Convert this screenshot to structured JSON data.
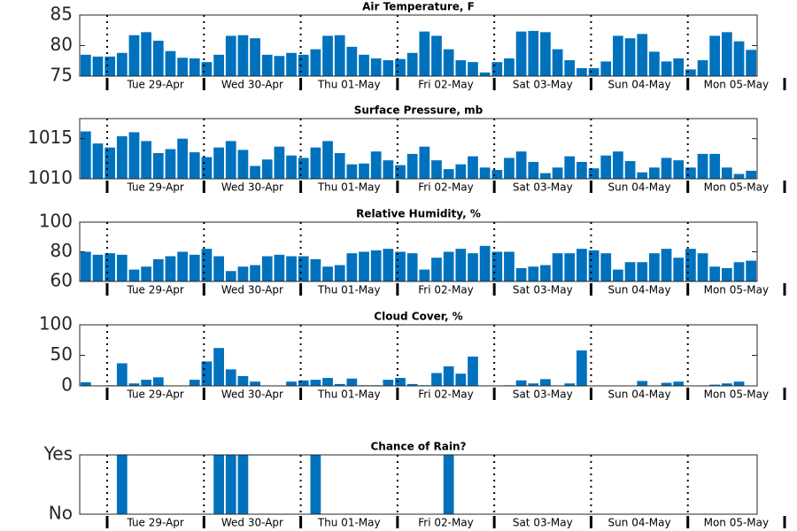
{
  "chart_data": [
    {
      "type": "bar",
      "title": "Air Temperature, F",
      "color": "#0072bd",
      "values": [
        78.5,
        78.2,
        78.2,
        78.8,
        81.7,
        82.2,
        80.8,
        79.1,
        78.0,
        77.9,
        77.3,
        78.5,
        81.6,
        81.7,
        81.2,
        78.5,
        78.3,
        78.8,
        78.5,
        79.4,
        81.6,
        81.7,
        79.8,
        78.5,
        77.9,
        77.6,
        77.8,
        78.8,
        82.3,
        81.6,
        79.4,
        77.6,
        77.3,
        75.6,
        77.3,
        77.9,
        82.3,
        82.4,
        82.2,
        79.4,
        77.6,
        76.3,
        76.3,
        77.4,
        81.6,
        81.2,
        81.9,
        79.0,
        77.4,
        77.9,
        76.1,
        77.6,
        81.6,
        82.2,
        80.7,
        79.3
      ],
      "ylim": [
        75,
        85
      ],
      "yticks": [
        75,
        80,
        85
      ],
      "xlim": [
        -0.5,
        55.5
      ],
      "xticks": [
        1.77,
        9.77,
        17.77,
        25.77,
        33.77,
        41.77,
        49.77,
        57.77
      ],
      "day_labels": [
        "Tue 29-Apr",
        "Wed 30-Apr",
        "Thu 01-May",
        "Fri 02-May",
        "Sat 03-May",
        "Sun 04-May",
        "Mon 05-May"
      ]
    },
    {
      "type": "bar",
      "title": "Surface Pressure, mb",
      "color": "#0072bd",
      "values": [
        1015.9,
        1014.4,
        1013.9,
        1015.3,
        1015.8,
        1014.7,
        1013.2,
        1013.7,
        1015.0,
        1013.3,
        1012.7,
        1013.9,
        1014.7,
        1013.6,
        1011.6,
        1012.4,
        1014.0,
        1012.9,
        1012.6,
        1013.9,
        1014.7,
        1013.2,
        1011.8,
        1011.9,
        1013.4,
        1012.3,
        1011.7,
        1013.1,
        1014.0,
        1012.3,
        1011.2,
        1011.8,
        1012.8,
        1011.4,
        1011.1,
        1012.6,
        1013.4,
        1012.1,
        1010.7,
        1011.4,
        1012.8,
        1012.1,
        1011.3,
        1012.9,
        1013.4,
        1012.2,
        1010.8,
        1011.4,
        1012.6,
        1012.3,
        1011.4,
        1013.1,
        1013.1,
        1011.4,
        1010.6,
        1011.0
      ],
      "ylim": [
        1010,
        1017.5
      ],
      "yticks": [
        1010,
        1015
      ],
      "xlim": [
        -0.5,
        55.5
      ],
      "xticks": [
        1.77,
        9.77,
        17.77,
        25.77,
        33.77,
        41.77,
        49.77,
        57.77
      ],
      "day_labels": [
        "Tue 29-Apr",
        "Wed 30-Apr",
        "Thu 01-May",
        "Fri 02-May",
        "Sat 03-May",
        "Sun 04-May",
        "Mon 05-May"
      ]
    },
    {
      "type": "bar",
      "title": "Relative Humidity, %",
      "color": "#0072bd",
      "values": [
        80,
        78,
        79,
        78,
        68,
        70,
        75,
        77,
        80,
        78,
        82,
        77,
        67,
        70,
        71,
        77,
        78,
        77,
        77,
        75,
        70,
        71,
        79,
        80,
        81,
        82,
        80,
        79,
        68,
        76,
        80,
        82,
        79,
        84,
        80,
        80,
        69,
        70,
        71,
        79,
        79,
        82,
        81,
        79,
        68,
        73,
        73,
        79,
        82,
        76,
        82,
        79,
        70,
        69,
        73,
        74
      ],
      "ylim": [
        60,
        100
      ],
      "yticks": [
        60,
        80,
        100
      ],
      "xlim": [
        -0.5,
        55.5
      ],
      "xticks": [
        1.77,
        9.77,
        17.77,
        25.77,
        33.77,
        41.77,
        49.77,
        57.77
      ],
      "day_labels": [
        "Tue 29-Apr",
        "Wed 30-Apr",
        "Thu 01-May",
        "Fri 02-May",
        "Sat 03-May",
        "Sun 04-May",
        "Mon 05-May"
      ]
    },
    {
      "type": "bar",
      "title": "Cloud Cover, %",
      "color": "#0072bd",
      "values": [
        6,
        0,
        1,
        37,
        4,
        10,
        14,
        0,
        0,
        10,
        40,
        62,
        27,
        16,
        7,
        0,
        0,
        7,
        9,
        10,
        13,
        3,
        12,
        1,
        1,
        10,
        13,
        3,
        1,
        21,
        32,
        20,
        48,
        0,
        0,
        1,
        9,
        4,
        11,
        0,
        4,
        58,
        0,
        0,
        0,
        0,
        8,
        0,
        5,
        7,
        0,
        0,
        2,
        4,
        7,
        0
      ],
      "ylim": [
        0,
        100
      ],
      "yticks": [
        0,
        50,
        100
      ],
      "xlim": [
        -0.5,
        55.5
      ],
      "xticks": [
        1.77,
        9.77,
        17.77,
        25.77,
        33.77,
        41.77,
        49.77,
        57.77
      ],
      "day_labels": [
        "Tue 29-Apr",
        "Wed 30-Apr",
        "Thu 01-May",
        "Fri 02-May",
        "Sat 03-May",
        "Sun 04-May",
        "Mon 05-May"
      ]
    },
    {
      "type": "bar",
      "title": "Chance of Rain?",
      "color": "#0072bd",
      "values": [
        0,
        0,
        0,
        1,
        0,
        0,
        0,
        0,
        0,
        0,
        0,
        1,
        1,
        1,
        0,
        0,
        0,
        0,
        0,
        1,
        0,
        0,
        0,
        0,
        0,
        0,
        0,
        0,
        0,
        0,
        1,
        0,
        0,
        0,
        0,
        0,
        0,
        0,
        0,
        0,
        0,
        0,
        0,
        0,
        0,
        0,
        0,
        0,
        0,
        0,
        0,
        0,
        0,
        0,
        0,
        0
      ],
      "ylim": [
        0,
        1
      ],
      "yticks": [
        {
          "value": 0,
          "label": "No"
        },
        {
          "value": 1,
          "label": "Yes"
        }
      ],
      "xlim": [
        -0.5,
        55.5
      ],
      "xticks": [
        1.77,
        9.77,
        17.77,
        25.77,
        33.77,
        41.77,
        49.77,
        57.77
      ],
      "day_labels": [
        "Tue 29-Apr",
        "Wed 30-Apr",
        "Thu 01-May",
        "Fri 02-May",
        "Sat 03-May",
        "Sun 04-May",
        "Mon 05-May"
      ]
    }
  ]
}
